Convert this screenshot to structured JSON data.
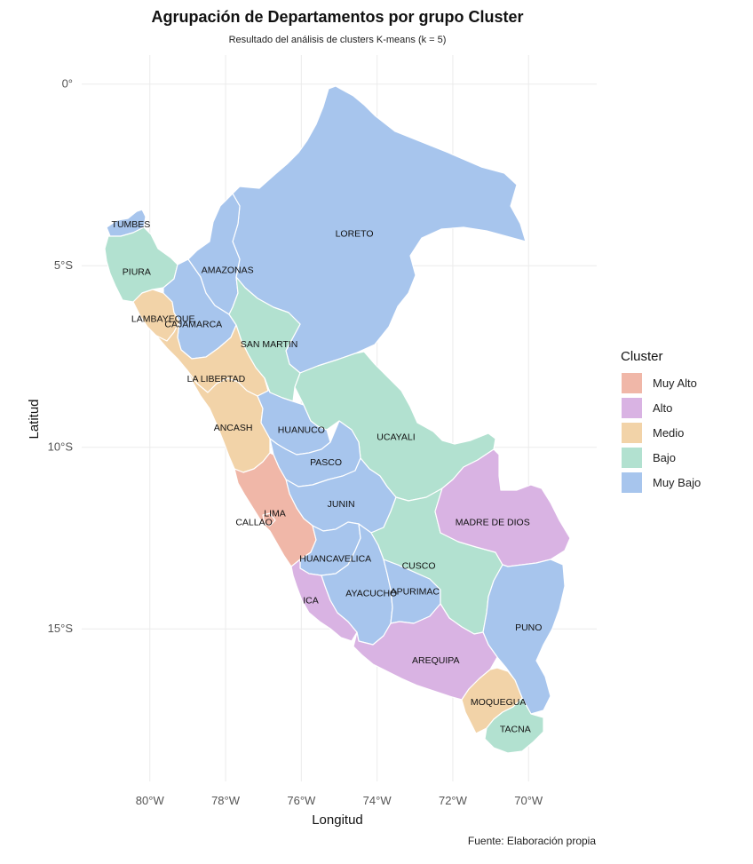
{
  "title": "Agrupación de Departamentos por grupo Cluster",
  "subtitle": "Resultado del análisis de clusters K-means (k = 5)",
  "caption": "Fuente: Elaboración propia",
  "chart_data": {
    "type": "choropleth",
    "xlabel": "Longitud",
    "ylabel": "Latitud",
    "x_ticks": [
      {
        "value": -80,
        "label": "80°W"
      },
      {
        "value": -78,
        "label": "78°W"
      },
      {
        "value": -76,
        "label": "76°W"
      },
      {
        "value": -74,
        "label": "74°W"
      },
      {
        "value": -72,
        "label": "72°W"
      },
      {
        "value": -70,
        "label": "70°W"
      }
    ],
    "y_ticks": [
      {
        "value": 0,
        "label": "0°"
      },
      {
        "value": -5,
        "label": "5°S"
      },
      {
        "value": -10,
        "label": "10°S"
      },
      {
        "value": -15,
        "label": "15°S"
      }
    ],
    "xlim": [
      -81.8,
      -68.2
    ],
    "ylim": [
      -19.2,
      0.8
    ],
    "grid": true,
    "legend": {
      "title": "Cluster",
      "position": "right",
      "items": [
        {
          "label": "Muy Alto",
          "color": "#f0b7a8"
        },
        {
          "label": "Alto",
          "color": "#d9b3e3"
        },
        {
          "label": "Medio",
          "color": "#f2d3a8"
        },
        {
          "label": "Bajo",
          "color": "#b2e1d0"
        },
        {
          "label": "Muy Bajo",
          "color": "#a7c5ed"
        }
      ]
    },
    "regions": [
      {
        "name": "TUMBES",
        "cluster": "Muy Bajo",
        "label_lon": -80.5,
        "label_lat": -3.85
      },
      {
        "name": "PIURA",
        "cluster": "Bajo",
        "label_lon": -80.35,
        "label_lat": -5.15
      },
      {
        "name": "LAMBAYEQUE",
        "cluster": "Medio",
        "label_lon": -79.65,
        "label_lat": -6.45
      },
      {
        "name": "CAJAMARCA",
        "cluster": "Muy Bajo",
        "label_lon": -78.85,
        "label_lat": -6.6
      },
      {
        "name": "AMAZONAS",
        "cluster": "Muy Bajo",
        "label_lon": -77.95,
        "label_lat": -5.1
      },
      {
        "name": "LORETO",
        "cluster": "Muy Bajo",
        "label_lon": -74.6,
        "label_lat": -4.1
      },
      {
        "name": "SAN MARTIN",
        "cluster": "Bajo",
        "label_lon": -76.85,
        "label_lat": -7.15
      },
      {
        "name": "LA LIBERTAD",
        "cluster": "Medio",
        "label_lon": -78.25,
        "label_lat": -8.1
      },
      {
        "name": "ANCASH",
        "cluster": "Medio",
        "label_lon": -77.8,
        "label_lat": -9.45
      },
      {
        "name": "HUANUCO",
        "cluster": "Muy Bajo",
        "label_lon": -76.0,
        "label_lat": -9.5
      },
      {
        "name": "UCAYALI",
        "cluster": "Bajo",
        "label_lon": -73.5,
        "label_lat": -9.7
      },
      {
        "name": "PASCO",
        "cluster": "Muy Bajo",
        "label_lon": -75.35,
        "label_lat": -10.4
      },
      {
        "name": "JUNIN",
        "cluster": "Muy Bajo",
        "label_lon": -74.95,
        "label_lat": -11.55
      },
      {
        "name": "LIMA",
        "cluster": "Muy Alto",
        "label_lon": -76.7,
        "label_lat": -11.8
      },
      {
        "name": "CALLAO",
        "cluster": "Muy Alto",
        "label_lon": -77.25,
        "label_lat": -12.05
      },
      {
        "name": "MADRE DE DIOS",
        "cluster": "Alto",
        "label_lon": -70.95,
        "label_lat": -12.05
      },
      {
        "name": "HUANCAVELICA",
        "cluster": "Muy Bajo",
        "label_lon": -75.1,
        "label_lat": -13.05
      },
      {
        "name": "CUSCO",
        "cluster": "Bajo",
        "label_lon": -72.9,
        "label_lat": -13.25
      },
      {
        "name": "ICA",
        "cluster": "Alto",
        "label_lon": -75.75,
        "label_lat": -14.2
      },
      {
        "name": "AYACUCHO",
        "cluster": "Muy Bajo",
        "label_lon": -74.15,
        "label_lat": -14.0
      },
      {
        "name": "APURIMAC",
        "cluster": "Muy Bajo",
        "label_lon": -73.0,
        "label_lat": -13.95
      },
      {
        "name": "PUNO",
        "cluster": "Muy Bajo",
        "label_lon": -70.0,
        "label_lat": -14.95
      },
      {
        "name": "AREQUIPA",
        "cluster": "Alto",
        "label_lon": -72.45,
        "label_lat": -15.85
      },
      {
        "name": "MOQUEGUA",
        "cluster": "Medio",
        "label_lon": -70.8,
        "label_lat": -17.0
      },
      {
        "name": "TACNA",
        "cluster": "Bajo",
        "label_lon": -70.35,
        "label_lat": -17.75
      }
    ]
  }
}
